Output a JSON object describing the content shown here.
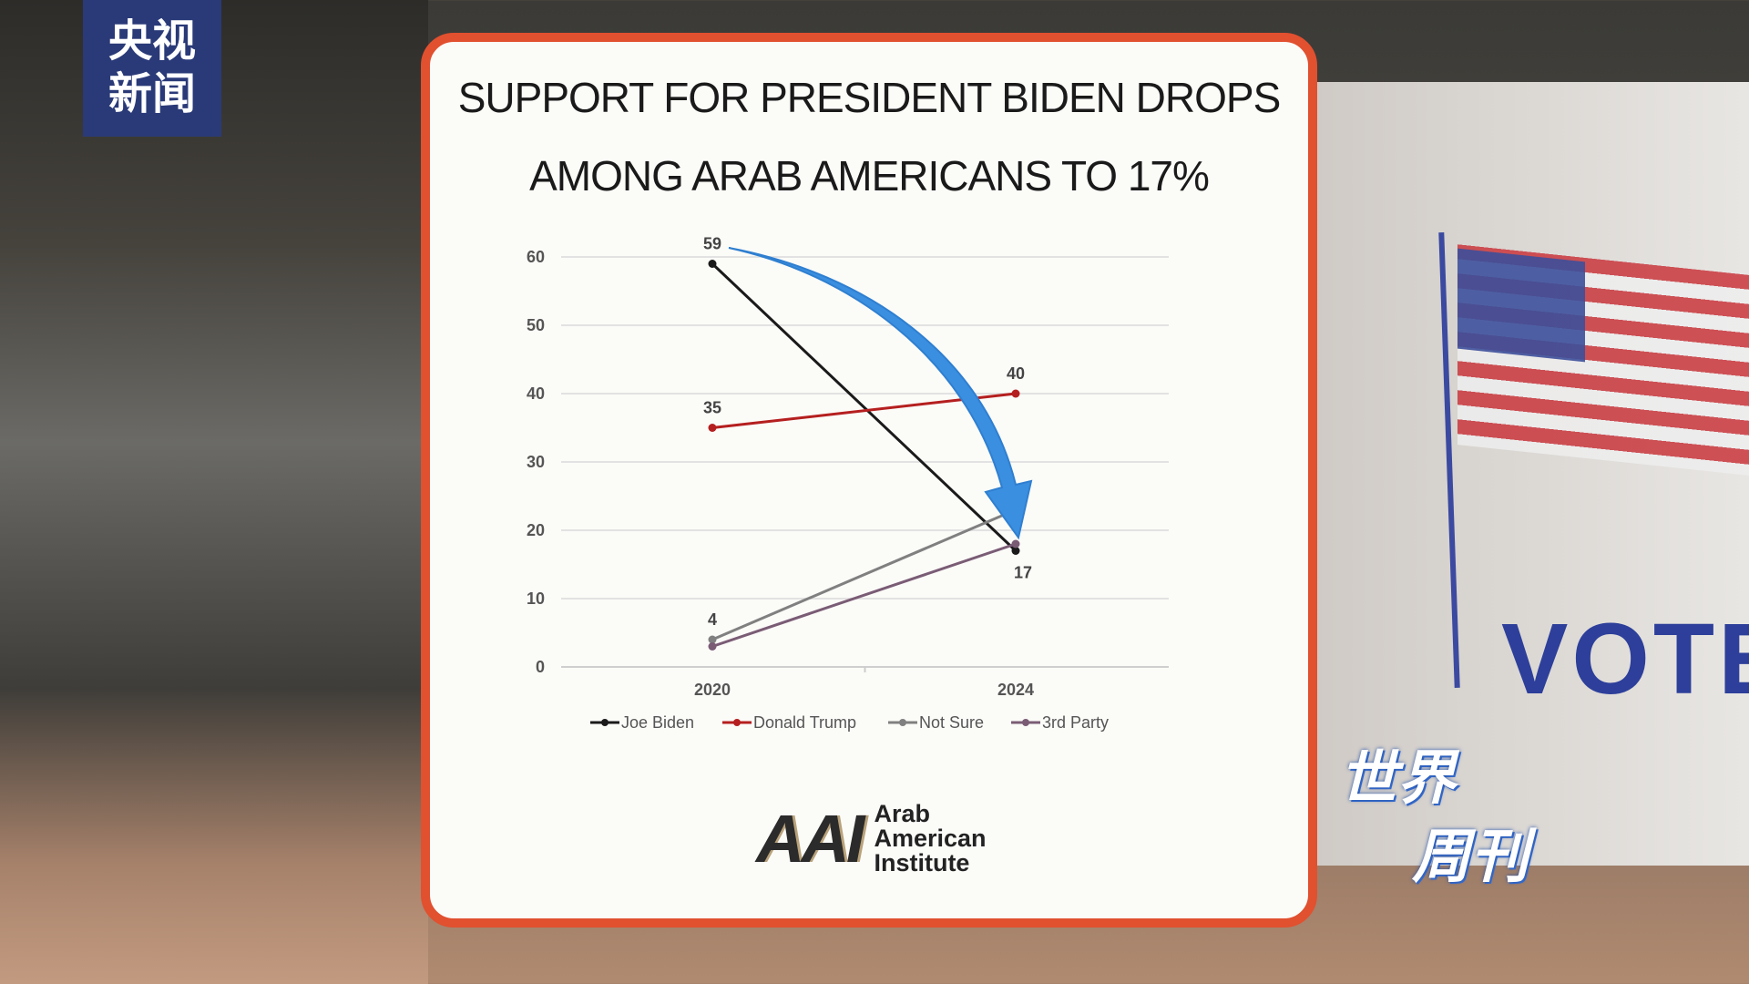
{
  "broadcaster_logo": "央视新闻",
  "program_logo": [
    "世界",
    "周刊"
  ],
  "background_sign": "VOTE",
  "card": {
    "title_lines": [
      "SUPPORT FOR PRESIDENT BIDEN DROPS",
      "AMONG ARAB AMERICANS TO 17%"
    ],
    "source_logo": {
      "mark": "AAI",
      "lines": [
        "Arab",
        "American",
        "Institute"
      ]
    },
    "accent_border": "#e1502f",
    "annotation": "blue curved arrow from Biden 2020 to Biden 2024"
  },
  "chart_data": {
    "type": "line",
    "categories": [
      "2020",
      "2024"
    ],
    "ylim": [
      0,
      60
    ],
    "yticks": [
      "0",
      "10",
      "20",
      "30",
      "40",
      "50",
      "60"
    ],
    "grid": true,
    "legend": "bottom",
    "series": [
      {
        "name": "Joe Biden",
        "values": [
          59,
          17
        ],
        "color": "#1a1a1a",
        "labels": [
          "59",
          "17"
        ]
      },
      {
        "name": "Donald Trump",
        "values": [
          35,
          40
        ],
        "color": "#b51f1f",
        "labels": [
          "35",
          "40"
        ]
      },
      {
        "name": "Not Sure",
        "values": [
          4,
          23
        ],
        "color": "#808080",
        "labels": [
          "4",
          ""
        ]
      },
      {
        "name": "3rd Party",
        "values": [
          3,
          18
        ],
        "color": "#7a5c75",
        "labels": [
          "",
          ""
        ]
      }
    ]
  }
}
